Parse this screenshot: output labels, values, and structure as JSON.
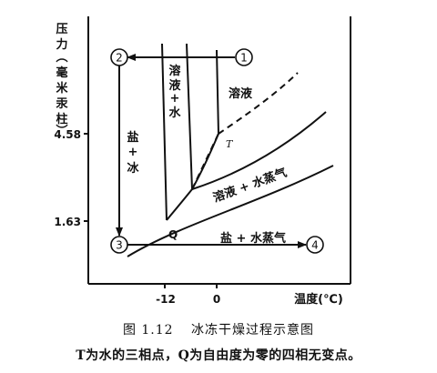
{
  "axes": {
    "y_label_chars": [
      "压",
      "力",
      "︵",
      "毫",
      "米",
      "汞",
      "柱",
      "︶"
    ],
    "x_label": "温度(℃)",
    "y_ticks": [
      "4.58",
      "1.63"
    ],
    "x_ticks": [
      "-12",
      "0"
    ]
  },
  "regions": {
    "solution_ice": [
      "溶",
      "液",
      "+",
      "水"
    ],
    "salt_ice": [
      "盐",
      "+",
      "冰"
    ],
    "solution": "溶液",
    "solution_vapor": "溶液 + 水蒸气",
    "salt_vapor": "盐 + 水蒸气"
  },
  "points": {
    "triple": "T",
    "quad": "Q",
    "step1": "1",
    "step2": "2",
    "step3": "3",
    "step4": "4"
  },
  "caption": {
    "number": "图 1.12",
    "title": "冰冻干燥过程示意图"
  },
  "note": "T为水的三相点，Q为自由度为零的四相无变点。"
}
